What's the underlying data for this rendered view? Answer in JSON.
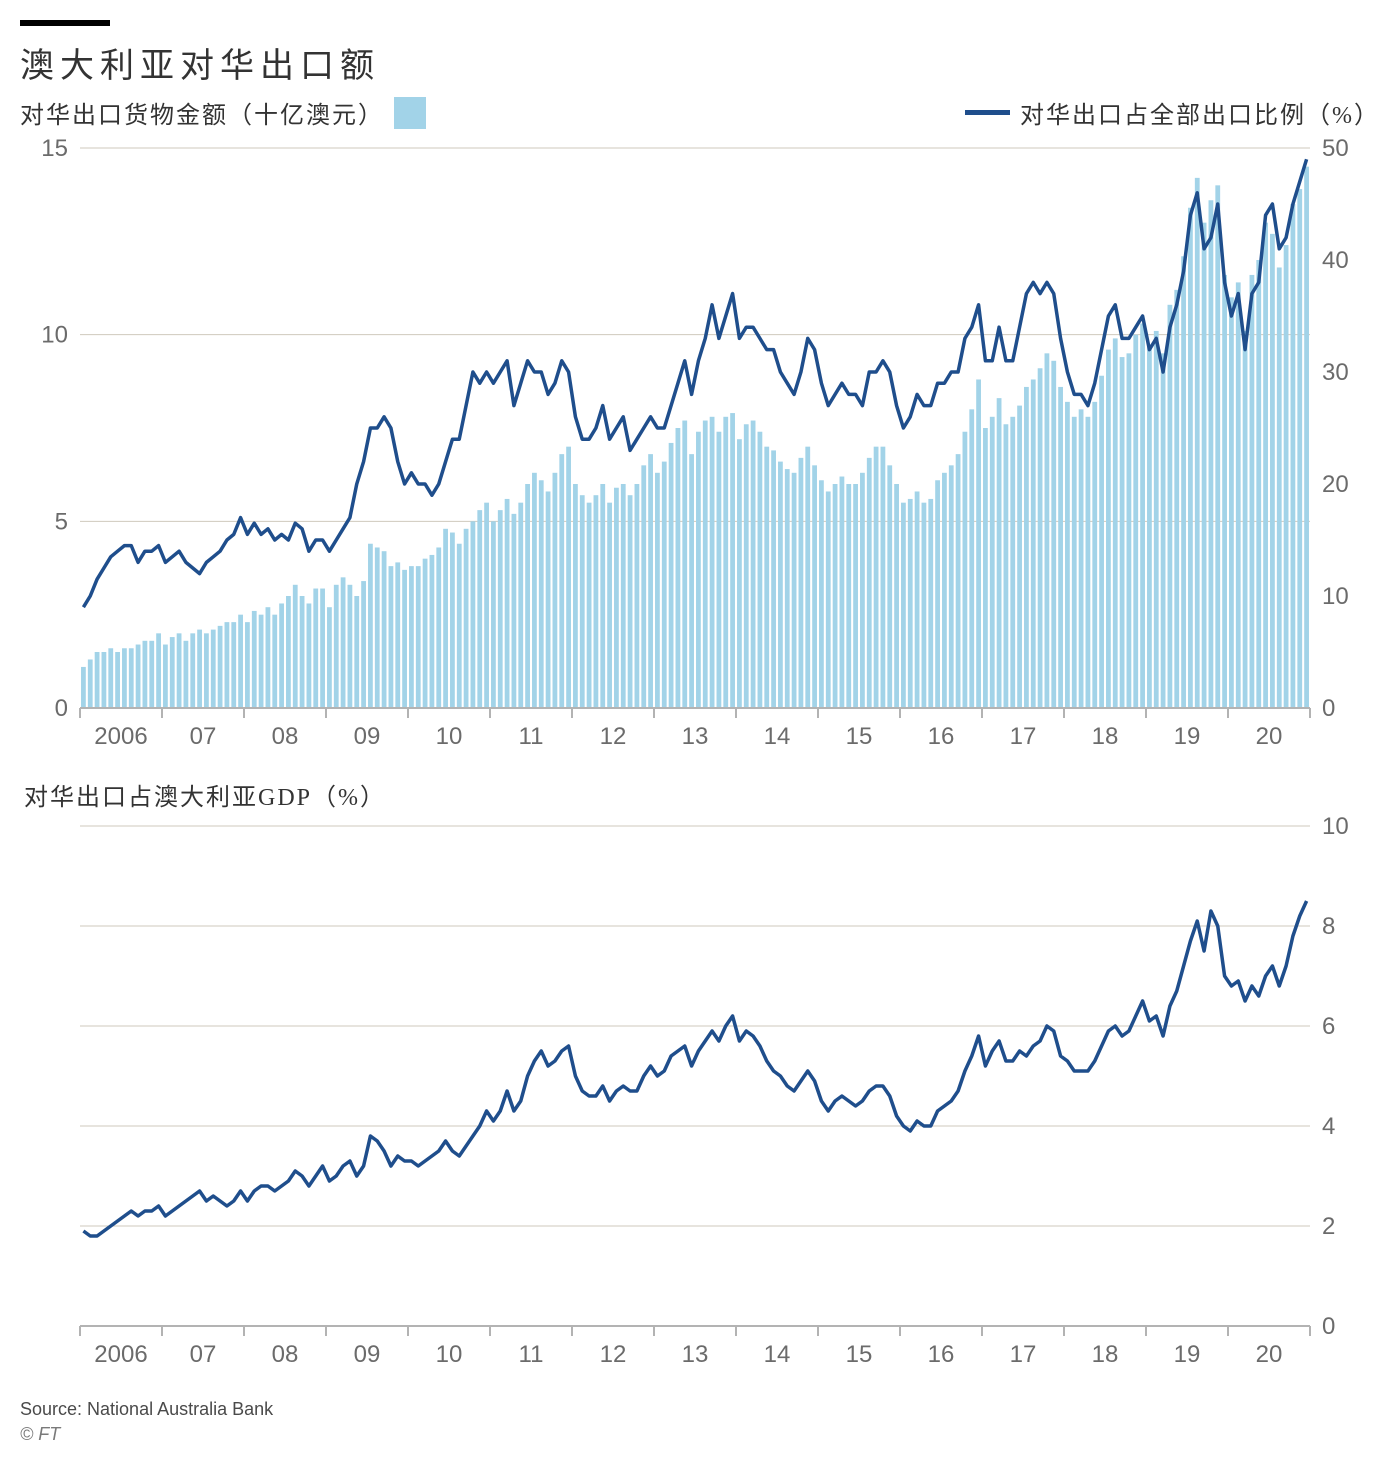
{
  "title": "澳大利亚对华出口额",
  "source": "Source: National Australia Bank",
  "copyright": "© FT",
  "colors": {
    "bar": "#a2d3e8",
    "line": "#1f4e8c",
    "grid": "#cfc9bd",
    "axis_text": "#6b6b6b",
    "baseline": "#b3b3b3",
    "tick": "#b3b3b3",
    "bg": "#ffffff",
    "title": "#222222"
  },
  "chart_top": {
    "type": "bar+line",
    "legend_bar_label": "对华出口货物金额（十亿澳元）",
    "legend_line_label": "对华出口占全部出口比例（%）",
    "x_labels": [
      "2006",
      "07",
      "08",
      "09",
      "10",
      "11",
      "12",
      "13",
      "14",
      "15",
      "16",
      "17",
      "18",
      "19",
      "20"
    ],
    "left_axis": {
      "min": 0,
      "max": 15,
      "ticks": [
        0,
        5,
        10,
        15
      ]
    },
    "right_axis": {
      "min": 0,
      "max": 50,
      "ticks": [
        0,
        10,
        20,
        30,
        40,
        50
      ]
    },
    "axis_fontsize": 24,
    "bar_values": [
      1.1,
      1.3,
      1.5,
      1.5,
      1.6,
      1.5,
      1.6,
      1.6,
      1.7,
      1.8,
      1.8,
      2.0,
      1.7,
      1.9,
      2.0,
      1.8,
      2.0,
      2.1,
      2.0,
      2.1,
      2.2,
      2.3,
      2.3,
      2.5,
      2.3,
      2.6,
      2.5,
      2.7,
      2.5,
      2.8,
      3.0,
      3.3,
      3.0,
      2.8,
      3.2,
      3.2,
      2.7,
      3.3,
      3.5,
      3.3,
      3.0,
      3.4,
      4.4,
      4.3,
      4.2,
      3.8,
      3.9,
      3.7,
      3.8,
      3.8,
      4.0,
      4.1,
      4.3,
      4.8,
      4.7,
      4.4,
      4.8,
      5.0,
      5.3,
      5.5,
      5.0,
      5.3,
      5.6,
      5.2,
      5.5,
      6.0,
      6.3,
      6.1,
      5.8,
      6.3,
      6.8,
      7.0,
      6.0,
      5.7,
      5.5,
      5.7,
      6.0,
      5.5,
      5.9,
      6.0,
      5.7,
      6.0,
      6.5,
      6.8,
      6.3,
      6.6,
      7.1,
      7.5,
      7.7,
      6.8,
      7.4,
      7.7,
      7.8,
      7.4,
      7.8,
      7.9,
      7.2,
      7.6,
      7.7,
      7.4,
      7.0,
      6.9,
      6.6,
      6.4,
      6.3,
      6.7,
      7.0,
      6.5,
      6.1,
      5.8,
      6.0,
      6.2,
      6.0,
      6.0,
      6.3,
      6.7,
      7.0,
      7.0,
      6.5,
      6.0,
      5.5,
      5.6,
      5.8,
      5.5,
      5.6,
      6.1,
      6.3,
      6.5,
      6.8,
      7.4,
      8.0,
      8.8,
      7.5,
      7.8,
      8.3,
      7.6,
      7.8,
      8.1,
      8.6,
      8.8,
      9.1,
      9.5,
      9.3,
      8.6,
      8.2,
      7.8,
      8.0,
      7.8,
      8.2,
      8.9,
      9.6,
      9.9,
      9.4,
      9.5,
      10.0,
      10.3,
      9.7,
      10.1,
      9.5,
      10.8,
      11.2,
      12.1,
      13.4,
      14.2,
      13.0,
      13.6,
      14.0,
      11.6,
      11.0,
      11.4,
      10.1,
      11.6,
      12.0,
      13.0,
      12.7,
      11.8,
      12.4,
      13.5,
      13.9,
      14.5
    ],
    "line_values": [
      9,
      10,
      11.5,
      12.5,
      13.5,
      14,
      14.5,
      14.5,
      13,
      14,
      14,
      14.5,
      13,
      13.5,
      14,
      13,
      12.5,
      12,
      13,
      13.5,
      14,
      15,
      15.5,
      17,
      15.5,
      16.5,
      15.5,
      16,
      15,
      15.5,
      15,
      16.5,
      16,
      14,
      15,
      15,
      14,
      15,
      16,
      17,
      20,
      22,
      25,
      25,
      26,
      25,
      22,
      20,
      21,
      20,
      20,
      19,
      20,
      22,
      24,
      24,
      27,
      30,
      29,
      30,
      29,
      30,
      31,
      27,
      29,
      31,
      30,
      30,
      28,
      29,
      31,
      30,
      26,
      24,
      24,
      25,
      27,
      24,
      25,
      26,
      23,
      24,
      25,
      26,
      25,
      25,
      27,
      29,
      31,
      28,
      31,
      33,
      36,
      33,
      35,
      37,
      33,
      34,
      34,
      33,
      32,
      32,
      30,
      29,
      28,
      30,
      33,
      32,
      29,
      27,
      28,
      29,
      28,
      28,
      27,
      30,
      30,
      31,
      30,
      27,
      25,
      26,
      28,
      27,
      27,
      29,
      29,
      30,
      30,
      33,
      34,
      36,
      31,
      31,
      34,
      31,
      31,
      34,
      37,
      38,
      37,
      38,
      37,
      33,
      30,
      28,
      28,
      27,
      29,
      32,
      35,
      36,
      33,
      33,
      34,
      35,
      32,
      33,
      30,
      34,
      36,
      39,
      44,
      46,
      41,
      42,
      45,
      38,
      35,
      37,
      32,
      37,
      38,
      44,
      45,
      41,
      42,
      45,
      47,
      49
    ]
  },
  "chart_bottom": {
    "type": "line",
    "subtitle": "对华出口占澳大利亚GDP（%）",
    "x_labels": [
      "2006",
      "07",
      "08",
      "09",
      "10",
      "11",
      "12",
      "13",
      "14",
      "15",
      "16",
      "17",
      "18",
      "19",
      "20"
    ],
    "right_axis": {
      "min": 0,
      "max": 10,
      "ticks": [
        0,
        2,
        4,
        6,
        8,
        10
      ]
    },
    "axis_fontsize": 24,
    "line_values": [
      1.9,
      1.8,
      1.8,
      1.9,
      2.0,
      2.1,
      2.2,
      2.3,
      2.2,
      2.3,
      2.3,
      2.4,
      2.2,
      2.3,
      2.4,
      2.5,
      2.6,
      2.7,
      2.5,
      2.6,
      2.5,
      2.4,
      2.5,
      2.7,
      2.5,
      2.7,
      2.8,
      2.8,
      2.7,
      2.8,
      2.9,
      3.1,
      3.0,
      2.8,
      3.0,
      3.2,
      2.9,
      3.0,
      3.2,
      3.3,
      3.0,
      3.2,
      3.8,
      3.7,
      3.5,
      3.2,
      3.4,
      3.3,
      3.3,
      3.2,
      3.3,
      3.4,
      3.5,
      3.7,
      3.5,
      3.4,
      3.6,
      3.8,
      4.0,
      4.3,
      4.1,
      4.3,
      4.7,
      4.3,
      4.5,
      5.0,
      5.3,
      5.5,
      5.2,
      5.3,
      5.5,
      5.6,
      5.0,
      4.7,
      4.6,
      4.6,
      4.8,
      4.5,
      4.7,
      4.8,
      4.7,
      4.7,
      5.0,
      5.2,
      5.0,
      5.1,
      5.4,
      5.5,
      5.6,
      5.2,
      5.5,
      5.7,
      5.9,
      5.7,
      6.0,
      6.2,
      5.7,
      5.9,
      5.8,
      5.6,
      5.3,
      5.1,
      5.0,
      4.8,
      4.7,
      4.9,
      5.1,
      4.9,
      4.5,
      4.3,
      4.5,
      4.6,
      4.5,
      4.4,
      4.5,
      4.7,
      4.8,
      4.8,
      4.6,
      4.2,
      4.0,
      3.9,
      4.1,
      4.0,
      4.0,
      4.3,
      4.4,
      4.5,
      4.7,
      5.1,
      5.4,
      5.8,
      5.2,
      5.5,
      5.7,
      5.3,
      5.3,
      5.5,
      5.4,
      5.6,
      5.7,
      6.0,
      5.9,
      5.4,
      5.3,
      5.1,
      5.1,
      5.1,
      5.3,
      5.6,
      5.9,
      6.0,
      5.8,
      5.9,
      6.2,
      6.5,
      6.1,
      6.2,
      5.8,
      6.4,
      6.7,
      7.2,
      7.7,
      8.1,
      7.5,
      8.3,
      8.0,
      7.0,
      6.8,
      6.9,
      6.5,
      6.8,
      6.6,
      7.0,
      7.2,
      6.8,
      7.2,
      7.8,
      8.2,
      8.5
    ]
  }
}
